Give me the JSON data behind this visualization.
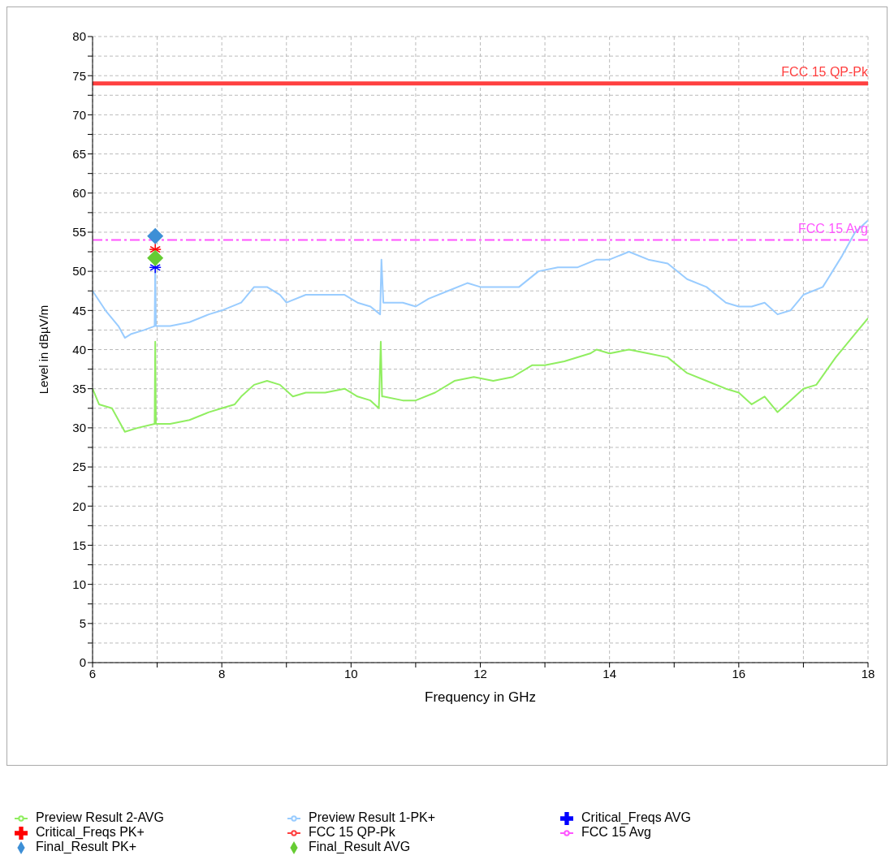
{
  "chart_data": {
    "type": "line",
    "xlabel": "Frequency in GHz",
    "ylabel": "Level in dBµV/m",
    "xlim": [
      6,
      18
    ],
    "ylim": [
      0,
      80
    ],
    "grid": true,
    "legend": "bottom",
    "xticks": [
      6,
      {
        "value": 7,
        "label": null
      },
      8,
      {
        "value": 9,
        "label": null
      },
      10,
      {
        "value": 11,
        "label": null
      },
      12,
      {
        "value": 13,
        "label": null
      },
      14,
      {
        "value": 15,
        "label": null
      },
      16,
      {
        "value": 17,
        "label": null
      },
      18
    ],
    "yticks": [
      0,
      {
        "value": 2.5,
        "label": null
      },
      5,
      {
        "value": 7.5,
        "label": null
      },
      10,
      {
        "value": 12.5,
        "label": null
      },
      15,
      {
        "value": 17.5,
        "label": null
      },
      20,
      {
        "value": 22.5,
        "label": null
      },
      25,
      {
        "value": 27.5,
        "label": null
      },
      30,
      {
        "value": 32.5,
        "label": null
      },
      35,
      {
        "value": 37.5,
        "label": null
      },
      40,
      {
        "value": 42.5,
        "label": null
      },
      45,
      {
        "value": 47.5,
        "label": null
      },
      50,
      {
        "value": 52.5,
        "label": null
      },
      55,
      {
        "value": 57.5,
        "label": null
      },
      60,
      {
        "value": 62.5,
        "label": null
      },
      65,
      {
        "value": 67.5,
        "label": null
      },
      70,
      {
        "value": 72.5,
        "label": null
      },
      75,
      {
        "value": 77.5,
        "label": null
      },
      80
    ],
    "series": [
      {
        "name": "Preview Result 2-AVG",
        "color": "#90ee60",
        "line_style": "solid",
        "marker": "none",
        "x": [
          6.0,
          6.1,
          6.3,
          6.5,
          6.7,
          6.96,
          6.97,
          6.98,
          7.2,
          7.5,
          7.8,
          8.0,
          8.2,
          8.3,
          8.5,
          8.7,
          8.9,
          9.1,
          9.3,
          9.6,
          9.9,
          10.1,
          10.3,
          10.43,
          10.46,
          10.48,
          10.5,
          10.8,
          11.0,
          11.3,
          11.6,
          11.9,
          12.2,
          12.5,
          12.8,
          13.0,
          13.3,
          13.7,
          13.8,
          14.0,
          14.3,
          14.6,
          14.9,
          15.2,
          15.5,
          15.8,
          16.0,
          16.2,
          16.4,
          16.6,
          16.8,
          17.0,
          17.2,
          17.5,
          17.8,
          18.0
        ],
        "values": [
          35,
          33,
          32.5,
          29.5,
          30,
          30.5,
          41,
          30.5,
          30.5,
          31,
          32,
          32.5,
          33,
          34,
          35.5,
          36,
          35.5,
          34,
          34.5,
          34.5,
          35,
          34,
          33.5,
          32.5,
          41,
          34,
          34,
          33.5,
          33.5,
          34.5,
          36,
          36.5,
          36,
          36.5,
          38,
          38,
          38.5,
          39.5,
          40,
          39.5,
          40,
          39.5,
          39,
          37,
          36,
          35,
          34.5,
          33,
          34,
          32,
          33.5,
          35,
          35.5,
          39,
          42,
          44
        ]
      },
      {
        "name": "Preview Result 1-PK+",
        "color": "#99ccff",
        "line_style": "solid",
        "marker": "none",
        "x": [
          6.0,
          6.2,
          6.4,
          6.5,
          6.6,
          6.8,
          6.96,
          6.97,
          6.98,
          7.2,
          7.5,
          7.8,
          8.0,
          8.3,
          8.5,
          8.7,
          8.9,
          9.0,
          9.3,
          9.6,
          9.9,
          10.1,
          10.3,
          10.45,
          10.47,
          10.5,
          10.8,
          11.0,
          11.2,
          11.5,
          11.8,
          12.0,
          12.3,
          12.6,
          12.9,
          13.2,
          13.5,
          13.8,
          14.0,
          14.3,
          14.6,
          14.9,
          15.2,
          15.5,
          15.8,
          16.0,
          16.2,
          16.4,
          16.6,
          16.8,
          17.0,
          17.3,
          17.6,
          17.8,
          18.0
        ],
        "values": [
          47.5,
          45,
          43,
          41.5,
          42,
          42.5,
          43,
          50.5,
          43,
          43,
          43.5,
          44.5,
          45,
          46,
          48,
          48,
          47,
          46,
          47,
          47,
          47,
          46,
          45.5,
          44.5,
          51.5,
          46,
          46,
          45.5,
          46.5,
          47.5,
          48.5,
          48,
          48,
          48,
          50,
          50.5,
          50.5,
          51.5,
          51.5,
          52.5,
          51.5,
          51,
          49,
          48,
          46,
          45.5,
          45.5,
          46,
          44.5,
          45,
          47,
          48,
          52,
          55,
          56.5
        ]
      },
      {
        "name": "Critical_Freqs AVG",
        "type": "scatter",
        "color": "#0000ff",
        "marker": "cross",
        "x": [
          6.97
        ],
        "values": [
          50.5
        ]
      },
      {
        "name": "Critical_Freqs PK+",
        "type": "scatter",
        "color": "#ff0000",
        "marker": "cross",
        "x": [
          6.97
        ],
        "values": [
          52.8
        ]
      },
      {
        "name": "FCC 15 QP-Pk",
        "color": "#ff4040",
        "line_style": "solid",
        "marker": "none",
        "x": [
          6,
          18
        ],
        "values": [
          74,
          74
        ]
      },
      {
        "name": "FCC 15 Avg",
        "color": "#ff55ff",
        "line_style": "dashed",
        "marker": "none",
        "x": [
          6,
          18
        ],
        "values": [
          54,
          54
        ]
      },
      {
        "name": "Final_Result PK+",
        "type": "scatter",
        "color": "#3d8fd6",
        "marker": "diamond",
        "x": [
          6.97
        ],
        "values": [
          54.5
        ]
      },
      {
        "name": "Final_Result AVG",
        "type": "scatter",
        "color": "#66cc33",
        "marker": "diamond",
        "x": [
          6.97
        ],
        "values": [
          51.7
        ]
      }
    ]
  }
}
